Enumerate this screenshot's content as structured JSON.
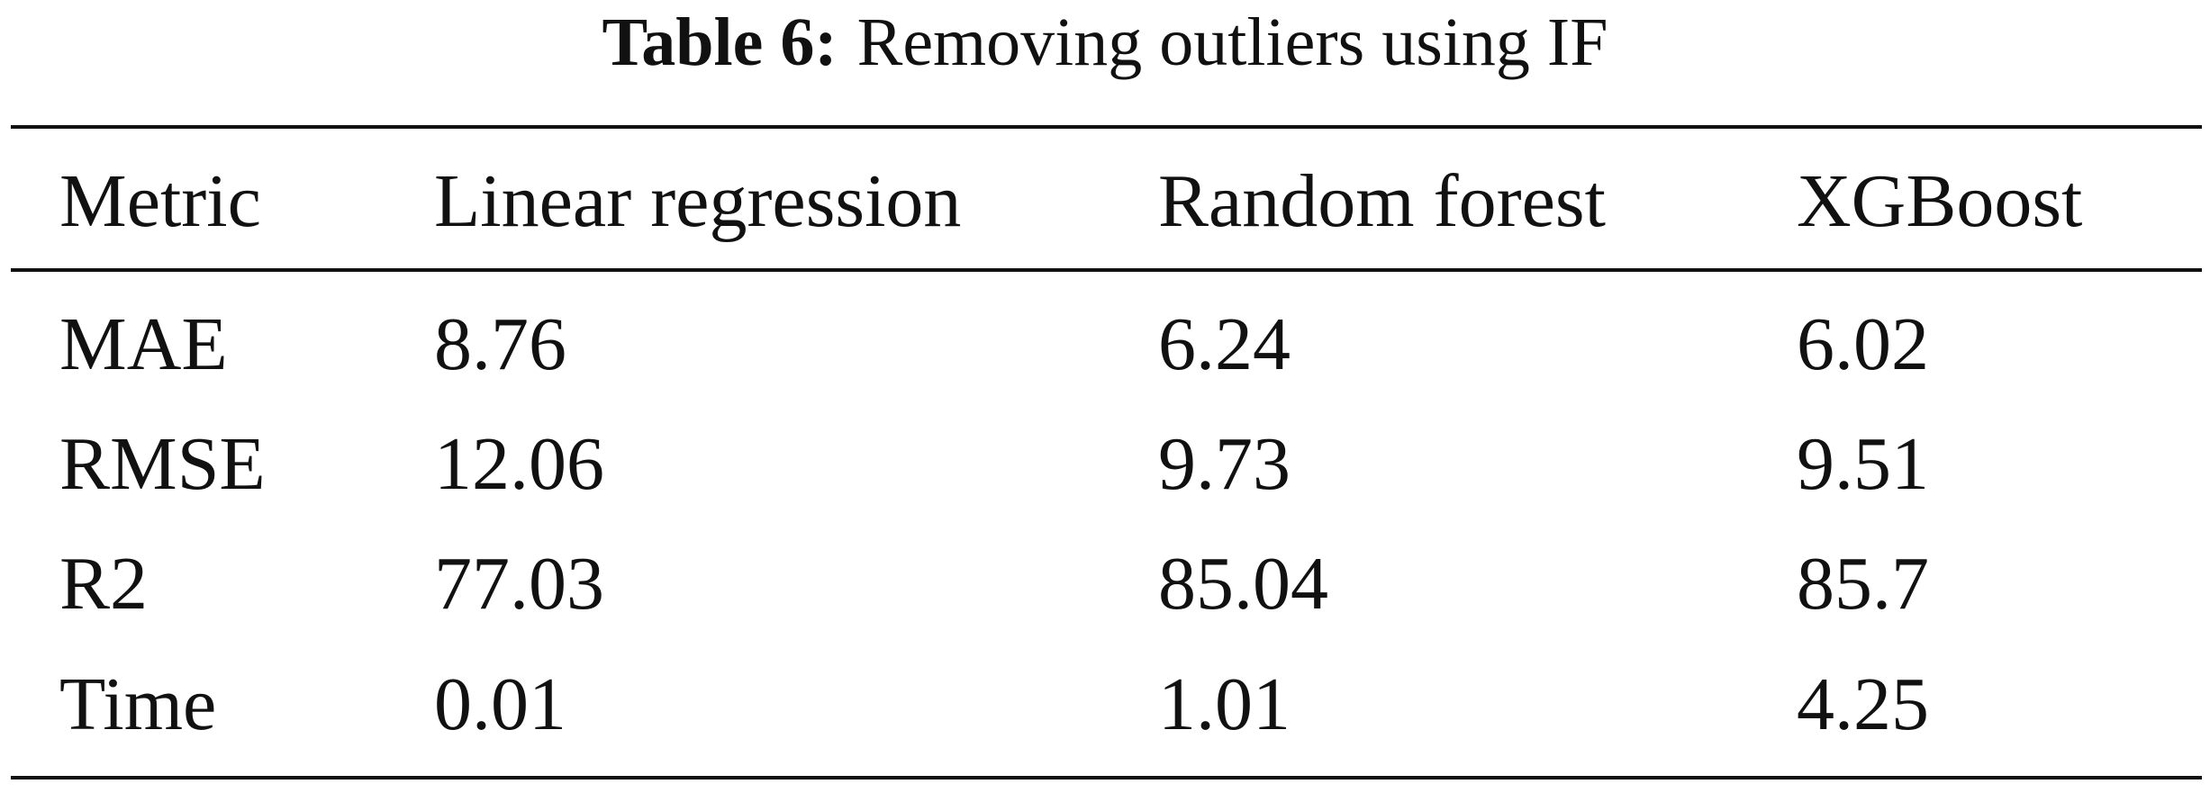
{
  "caption": {
    "label": "Table 6:",
    "text": "Removing outliers using IF"
  },
  "table": {
    "header": [
      "Metric",
      "Linear regression",
      "Random forest",
      "XGBoost"
    ],
    "rows": [
      [
        "MAE",
        "8.76",
        "6.24",
        "6.02"
      ],
      [
        "RMSE",
        "12.06",
        "9.73",
        "9.51"
      ],
      [
        "R2",
        "77.03",
        "85.04",
        "85.7"
      ],
      [
        "Time",
        "0.01",
        "1.01",
        "4.25"
      ]
    ]
  }
}
